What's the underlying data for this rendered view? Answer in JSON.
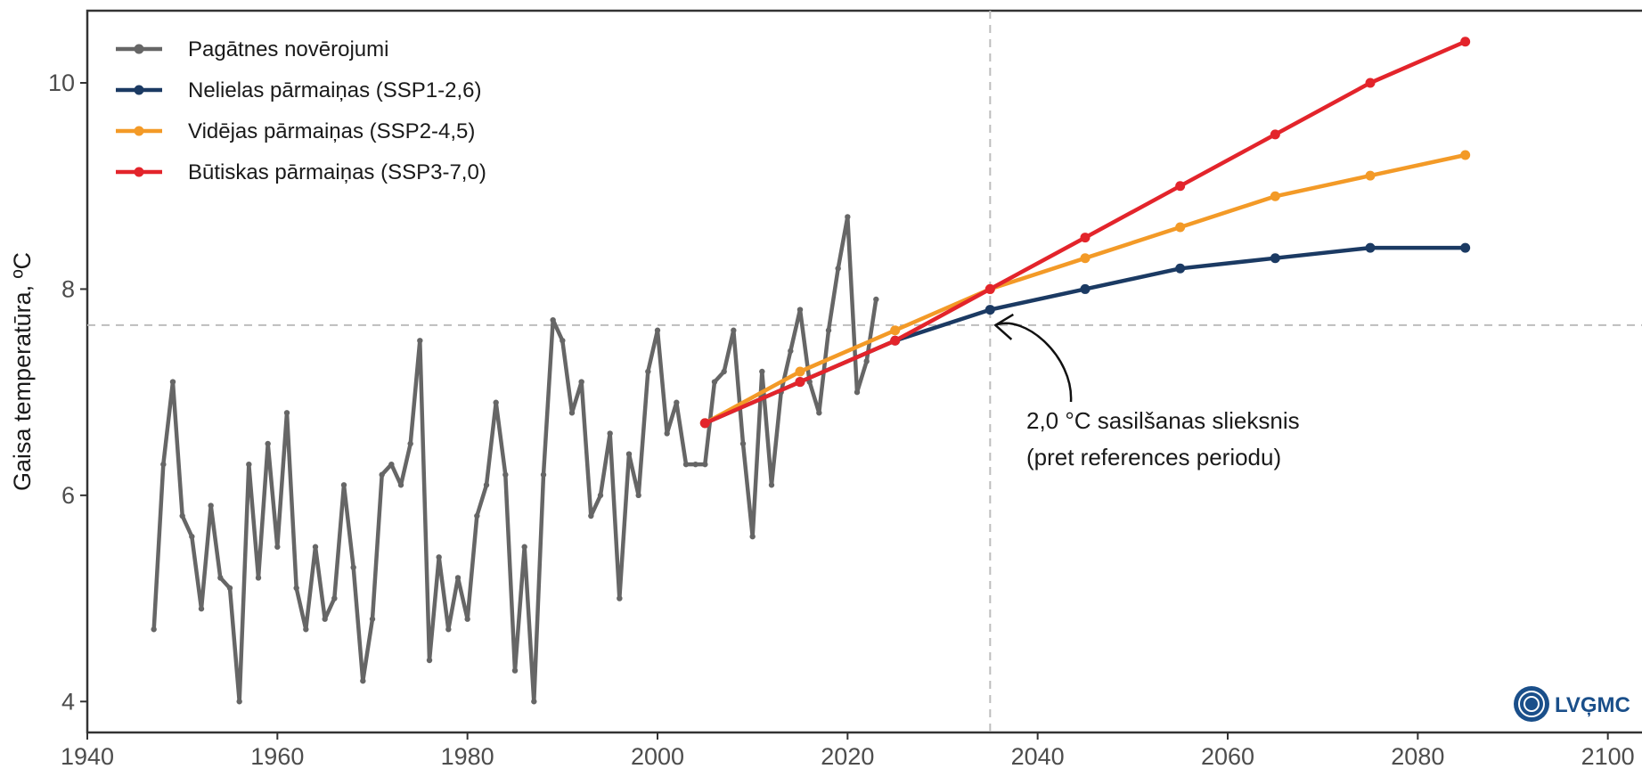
{
  "chart_data": {
    "type": "line",
    "xlabel": "",
    "ylabel": "Gaisa temperatūra, ºC",
    "xlim": [
      1940,
      2105
    ],
    "ylim": [
      3.7,
      10.7
    ],
    "x_ticks": [
      1940,
      1960,
      1980,
      2000,
      2020,
      2040,
      2060,
      2080,
      2100
    ],
    "y_ticks": [
      4,
      6,
      8,
      10
    ],
    "x_tick_labels": [
      "1940",
      "1960",
      "1980",
      "2000",
      "2020",
      "2040",
      "2060",
      "2080",
      "2100"
    ],
    "y_tick_labels": [
      "4",
      "6",
      "8",
      "10"
    ],
    "grid": false,
    "legend_position": "top-left",
    "reference_lines": {
      "vertical_x": 2035,
      "horizontal_y": 7.65
    },
    "series": [
      {
        "name": "Pagātnes novērojumi",
        "color": "#666666",
        "x": [
          1947,
          1948,
          1949,
          1950,
          1951,
          1952,
          1953,
          1954,
          1955,
          1956,
          1957,
          1958,
          1959,
          1960,
          1961,
          1962,
          1963,
          1964,
          1965,
          1966,
          1967,
          1968,
          1969,
          1970,
          1971,
          1972,
          1973,
          1974,
          1975,
          1976,
          1977,
          1978,
          1979,
          1980,
          1981,
          1982,
          1983,
          1984,
          1985,
          1986,
          1987,
          1988,
          1989,
          1990,
          1991,
          1992,
          1993,
          1994,
          1995,
          1996,
          1997,
          1998,
          1999,
          2000,
          2001,
          2002,
          2003,
          2004,
          2005,
          2006,
          2007,
          2008,
          2009,
          2010,
          2011,
          2012,
          2013,
          2014,
          2015,
          2016,
          2017,
          2018,
          2019,
          2020,
          2021,
          2022,
          2023
        ],
        "values": [
          4.7,
          6.3,
          7.1,
          5.8,
          5.6,
          4.9,
          5.9,
          5.2,
          5.1,
          4.0,
          6.3,
          5.2,
          6.5,
          5.5,
          6.8,
          5.1,
          4.7,
          5.5,
          4.8,
          5.0,
          6.1,
          5.3,
          4.2,
          4.8,
          6.2,
          6.3,
          6.1,
          6.5,
          7.5,
          4.4,
          5.4,
          4.7,
          5.2,
          4.8,
          5.8,
          6.1,
          6.9,
          6.2,
          4.3,
          5.5,
          4.0,
          6.2,
          7.7,
          7.5,
          6.8,
          7.1,
          5.8,
          6.0,
          6.6,
          5.0,
          6.4,
          6.0,
          7.2,
          7.6,
          6.6,
          6.9,
          6.3,
          6.3,
          6.3,
          7.1,
          7.2,
          7.6,
          6.5,
          5.6,
          7.2,
          6.1,
          7.0,
          7.4,
          7.8,
          7.1,
          6.8,
          7.6,
          8.2,
          8.7,
          7.0,
          7.3,
          7.9
        ]
      },
      {
        "name": "Nelielas pārmaiņas (SSP1-2,6)",
        "color": "#1b3a63",
        "x": [
          2005,
          2015,
          2025,
          2035,
          2045,
          2055,
          2065,
          2075,
          2085
        ],
        "values": [
          6.7,
          7.1,
          7.5,
          7.8,
          8.0,
          8.2,
          8.3,
          8.4,
          8.4
        ]
      },
      {
        "name": "Vidējas pārmaiņas (SSP2-4,5)",
        "color": "#f39a27",
        "x": [
          2005,
          2015,
          2025,
          2035,
          2045,
          2055,
          2065,
          2075,
          2085
        ],
        "values": [
          6.7,
          7.2,
          7.6,
          8.0,
          8.3,
          8.6,
          8.9,
          9.1,
          9.3
        ]
      },
      {
        "name": "Būtiskas pārmaiņas (SSP3-7,0)",
        "color": "#e3242b",
        "x": [
          2005,
          2015,
          2025,
          2035,
          2045,
          2055,
          2065,
          2075,
          2085
        ],
        "values": [
          6.7,
          7.1,
          7.5,
          8.0,
          8.5,
          9.0,
          9.5,
          10.0,
          10.4
        ]
      }
    ],
    "annotation": {
      "lines": [
        "2,0 °C sasilšanas slieksnis",
        "(pret references periodu)"
      ],
      "arrow_target": {
        "x": 2035,
        "y": 7.65
      }
    },
    "logo": {
      "text": "LVĢMC",
      "color": "#1a4f8a"
    }
  }
}
